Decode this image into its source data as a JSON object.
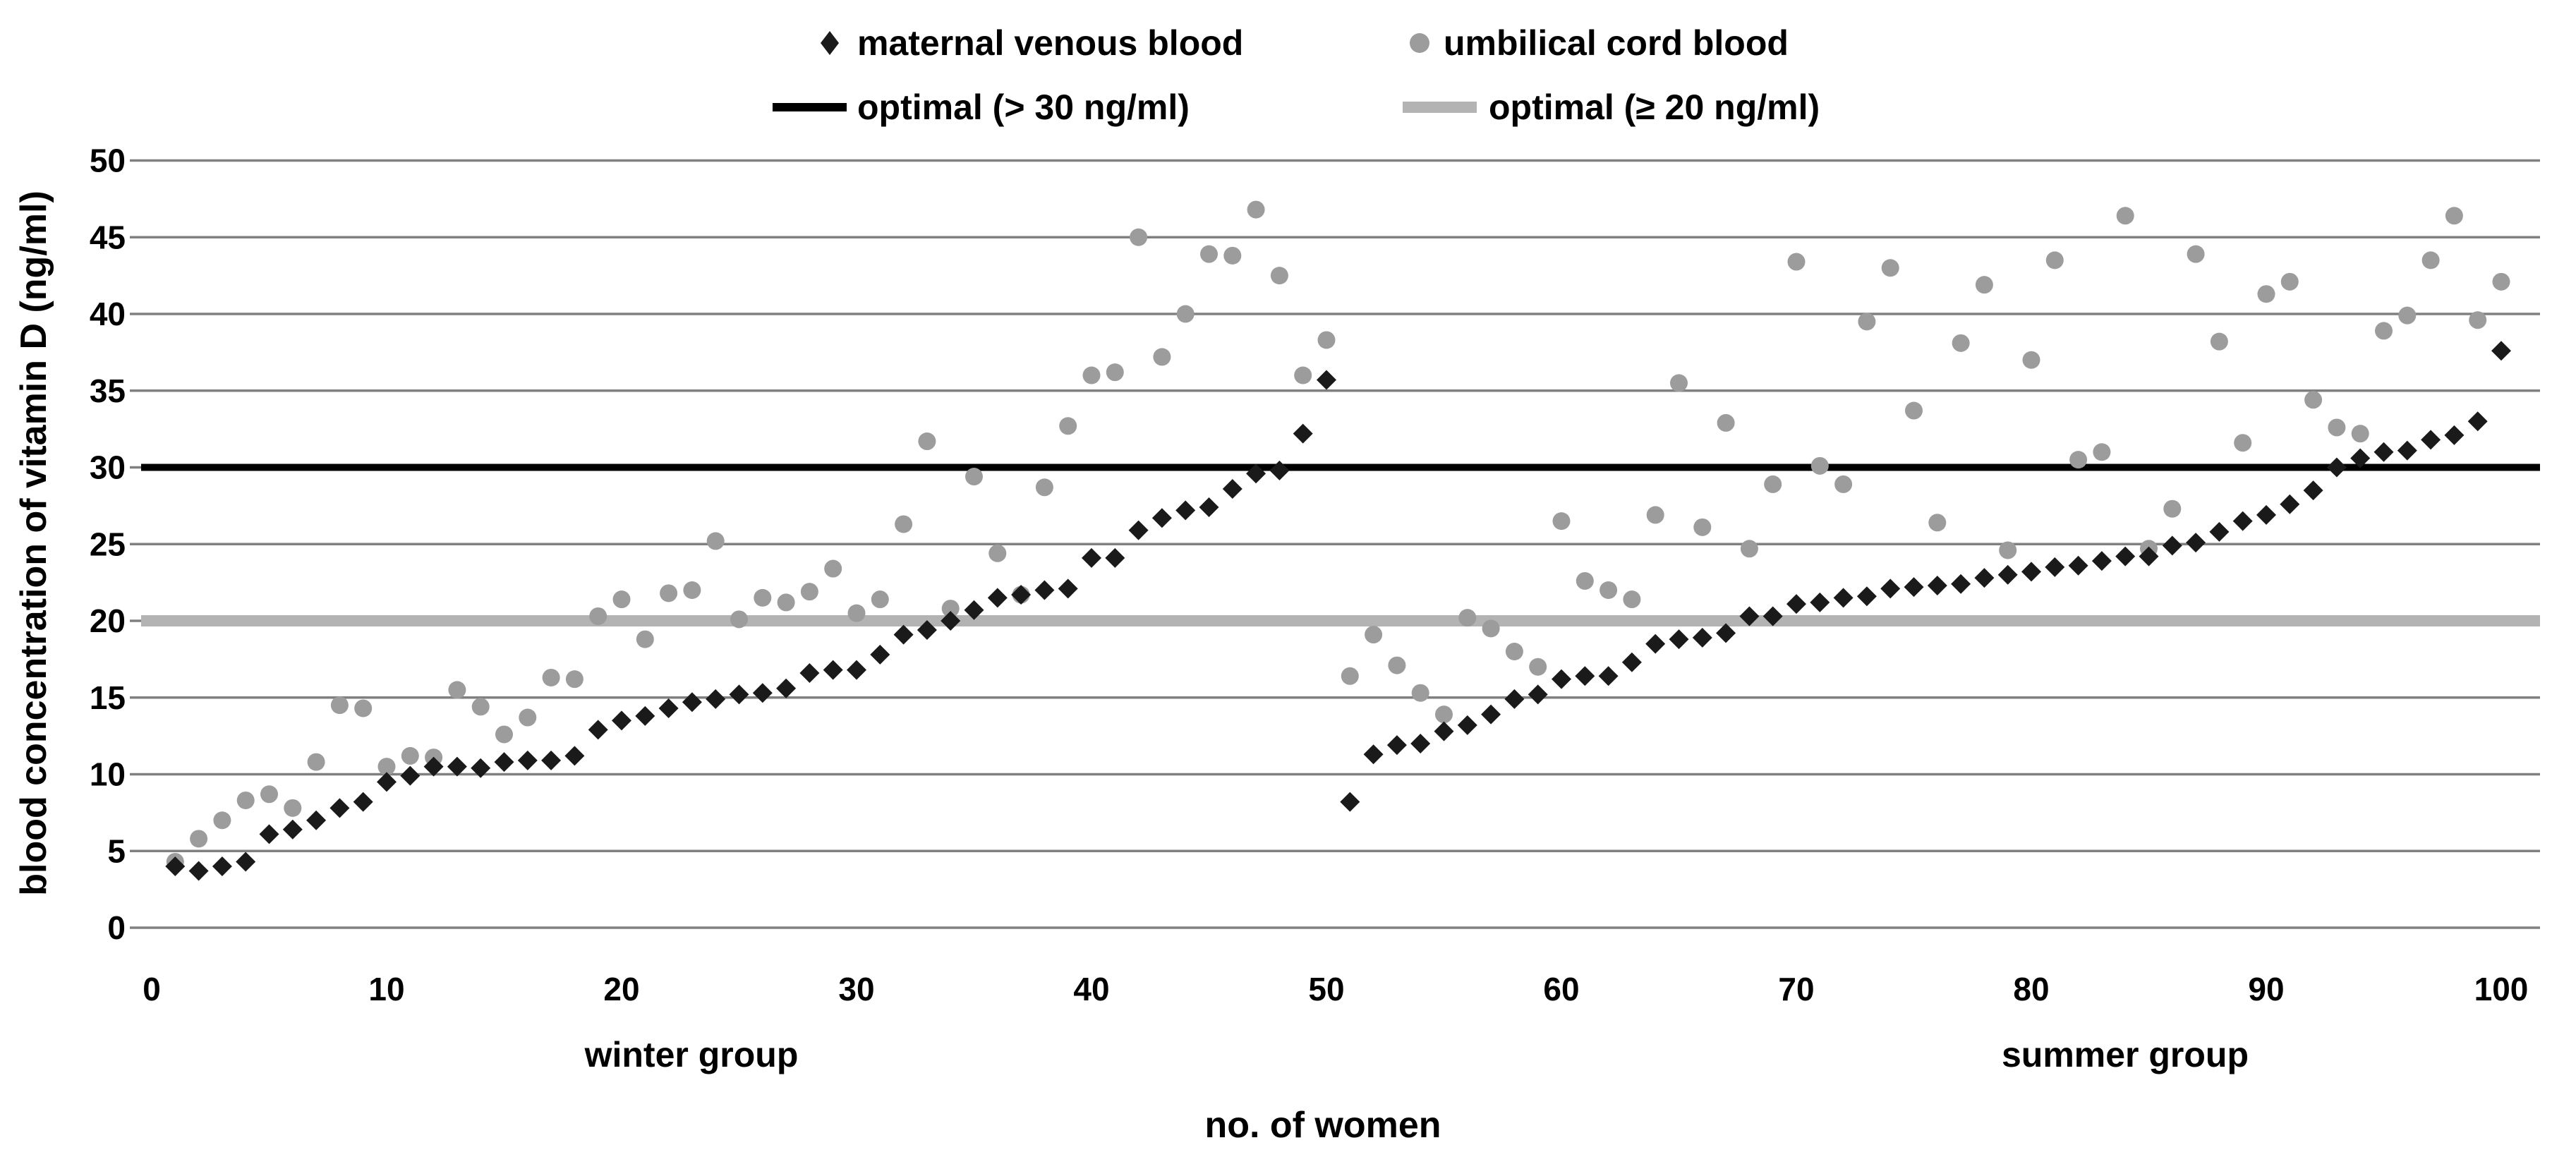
{
  "chart_data": {
    "type": "scatter",
    "title": "",
    "xlabel": "no. of women",
    "ylabel": "blood concentration of vitamin D (ng/ml)",
    "xlim": [
      0,
      103
    ],
    "ylim": [
      0,
      50
    ],
    "x_ticks": [
      0,
      10,
      20,
      30,
      40,
      50,
      60,
      70,
      80,
      90,
      100
    ],
    "y_ticks": [
      0,
      5,
      10,
      15,
      20,
      25,
      30,
      35,
      40,
      45,
      50
    ],
    "grid": true,
    "legend_position": "top-center",
    "group_labels": [
      {
        "text": "winter group",
        "x": 23
      },
      {
        "text": "summer group",
        "x": 84
      }
    ],
    "reference_lines": [
      {
        "label": "optimal (> 30 ng/ml)",
        "value": 30,
        "color": "#000000",
        "width": 10
      },
      {
        "label": "optimal (≥ 20 ng/ml)",
        "value": 20,
        "color": "#b3b3b3",
        "width": 16
      }
    ],
    "series": [
      {
        "name": "maternal venous blood",
        "marker": "diamond",
        "color": "#1a1a1a",
        "x_start": 1,
        "values": [
          4.0,
          3.7,
          4.0,
          4.3,
          6.1,
          6.4,
          7.0,
          7.8,
          8.2,
          9.5,
          9.9,
          10.5,
          10.5,
          10.4,
          10.8,
          10.9,
          10.9,
          11.2,
          12.9,
          13.5,
          13.8,
          14.3,
          14.7,
          14.9,
          15.2,
          15.3,
          15.6,
          16.6,
          16.8,
          16.8,
          17.8,
          19.1,
          19.4,
          20.0,
          20.7,
          21.5,
          21.7,
          22.0,
          22.1,
          24.1,
          24.1,
          25.9,
          26.7,
          27.2,
          27.4,
          28.6,
          29.6,
          29.8,
          32.2,
          35.7,
          8.2,
          11.3,
          11.9,
          12.0,
          12.8,
          13.2,
          13.9,
          14.9,
          15.2,
          16.2,
          16.4,
          16.4,
          17.3,
          18.5,
          18.8,
          18.9,
          19.2,
          20.3,
          20.3,
          21.1,
          21.2,
          21.5,
          21.6,
          22.1,
          22.2,
          22.3,
          22.4,
          22.8,
          23.0,
          23.2,
          23.5,
          23.6,
          23.9,
          24.2,
          24.2,
          24.9,
          25.1,
          25.8,
          26.5,
          26.9,
          27.6,
          28.5,
          30.0,
          30.6,
          31.0,
          31.1,
          31.8,
          32.1,
          33.0,
          37.6
        ]
      },
      {
        "name": "umbilical cord blood",
        "marker": "circle",
        "color": "#9c9c9c",
        "x_start": 1,
        "values": [
          4.3,
          5.8,
          7.0,
          8.3,
          8.7,
          7.8,
          10.8,
          14.5,
          14.3,
          10.5,
          11.2,
          11.1,
          15.5,
          14.4,
          12.6,
          13.7,
          16.3,
          16.2,
          20.3,
          21.4,
          18.8,
          21.8,
          22.0,
          25.2,
          20.1,
          21.5,
          21.2,
          21.9,
          23.4,
          20.5,
          21.4,
          26.3,
          31.7,
          20.8,
          29.4,
          24.4,
          21.7,
          28.7,
          32.7,
          36.0,
          36.2,
          45.0,
          37.2,
          40.0,
          43.9,
          43.8,
          46.8,
          42.5,
          36.0,
          38.3,
          16.4,
          19.1,
          17.1,
          15.3,
          13.9,
          20.2,
          19.5,
          18.0,
          17.0,
          26.5,
          22.6,
          22.0,
          21.4,
          26.9,
          35.5,
          26.1,
          32.9,
          24.7,
          28.9,
          43.4,
          30.1,
          28.9,
          39.5,
          43.0,
          33.7,
          26.4,
          38.1,
          41.9,
          24.6,
          37.0,
          43.5,
          30.5,
          31.0,
          46.4,
          24.7,
          27.3,
          43.9,
          38.2,
          31.6,
          41.3,
          42.1,
          34.4,
          32.6,
          32.2,
          38.9,
          39.9,
          43.5,
          46.4,
          39.6,
          42.1
        ]
      }
    ],
    "colors": {
      "background": "#ffffff",
      "gridline": "#808080",
      "maternal": "#1a1a1a",
      "umbilical": "#9c9c9c",
      "optimal_30_line": "#000000",
      "optimal_20_line": "#b3b3b3"
    }
  }
}
